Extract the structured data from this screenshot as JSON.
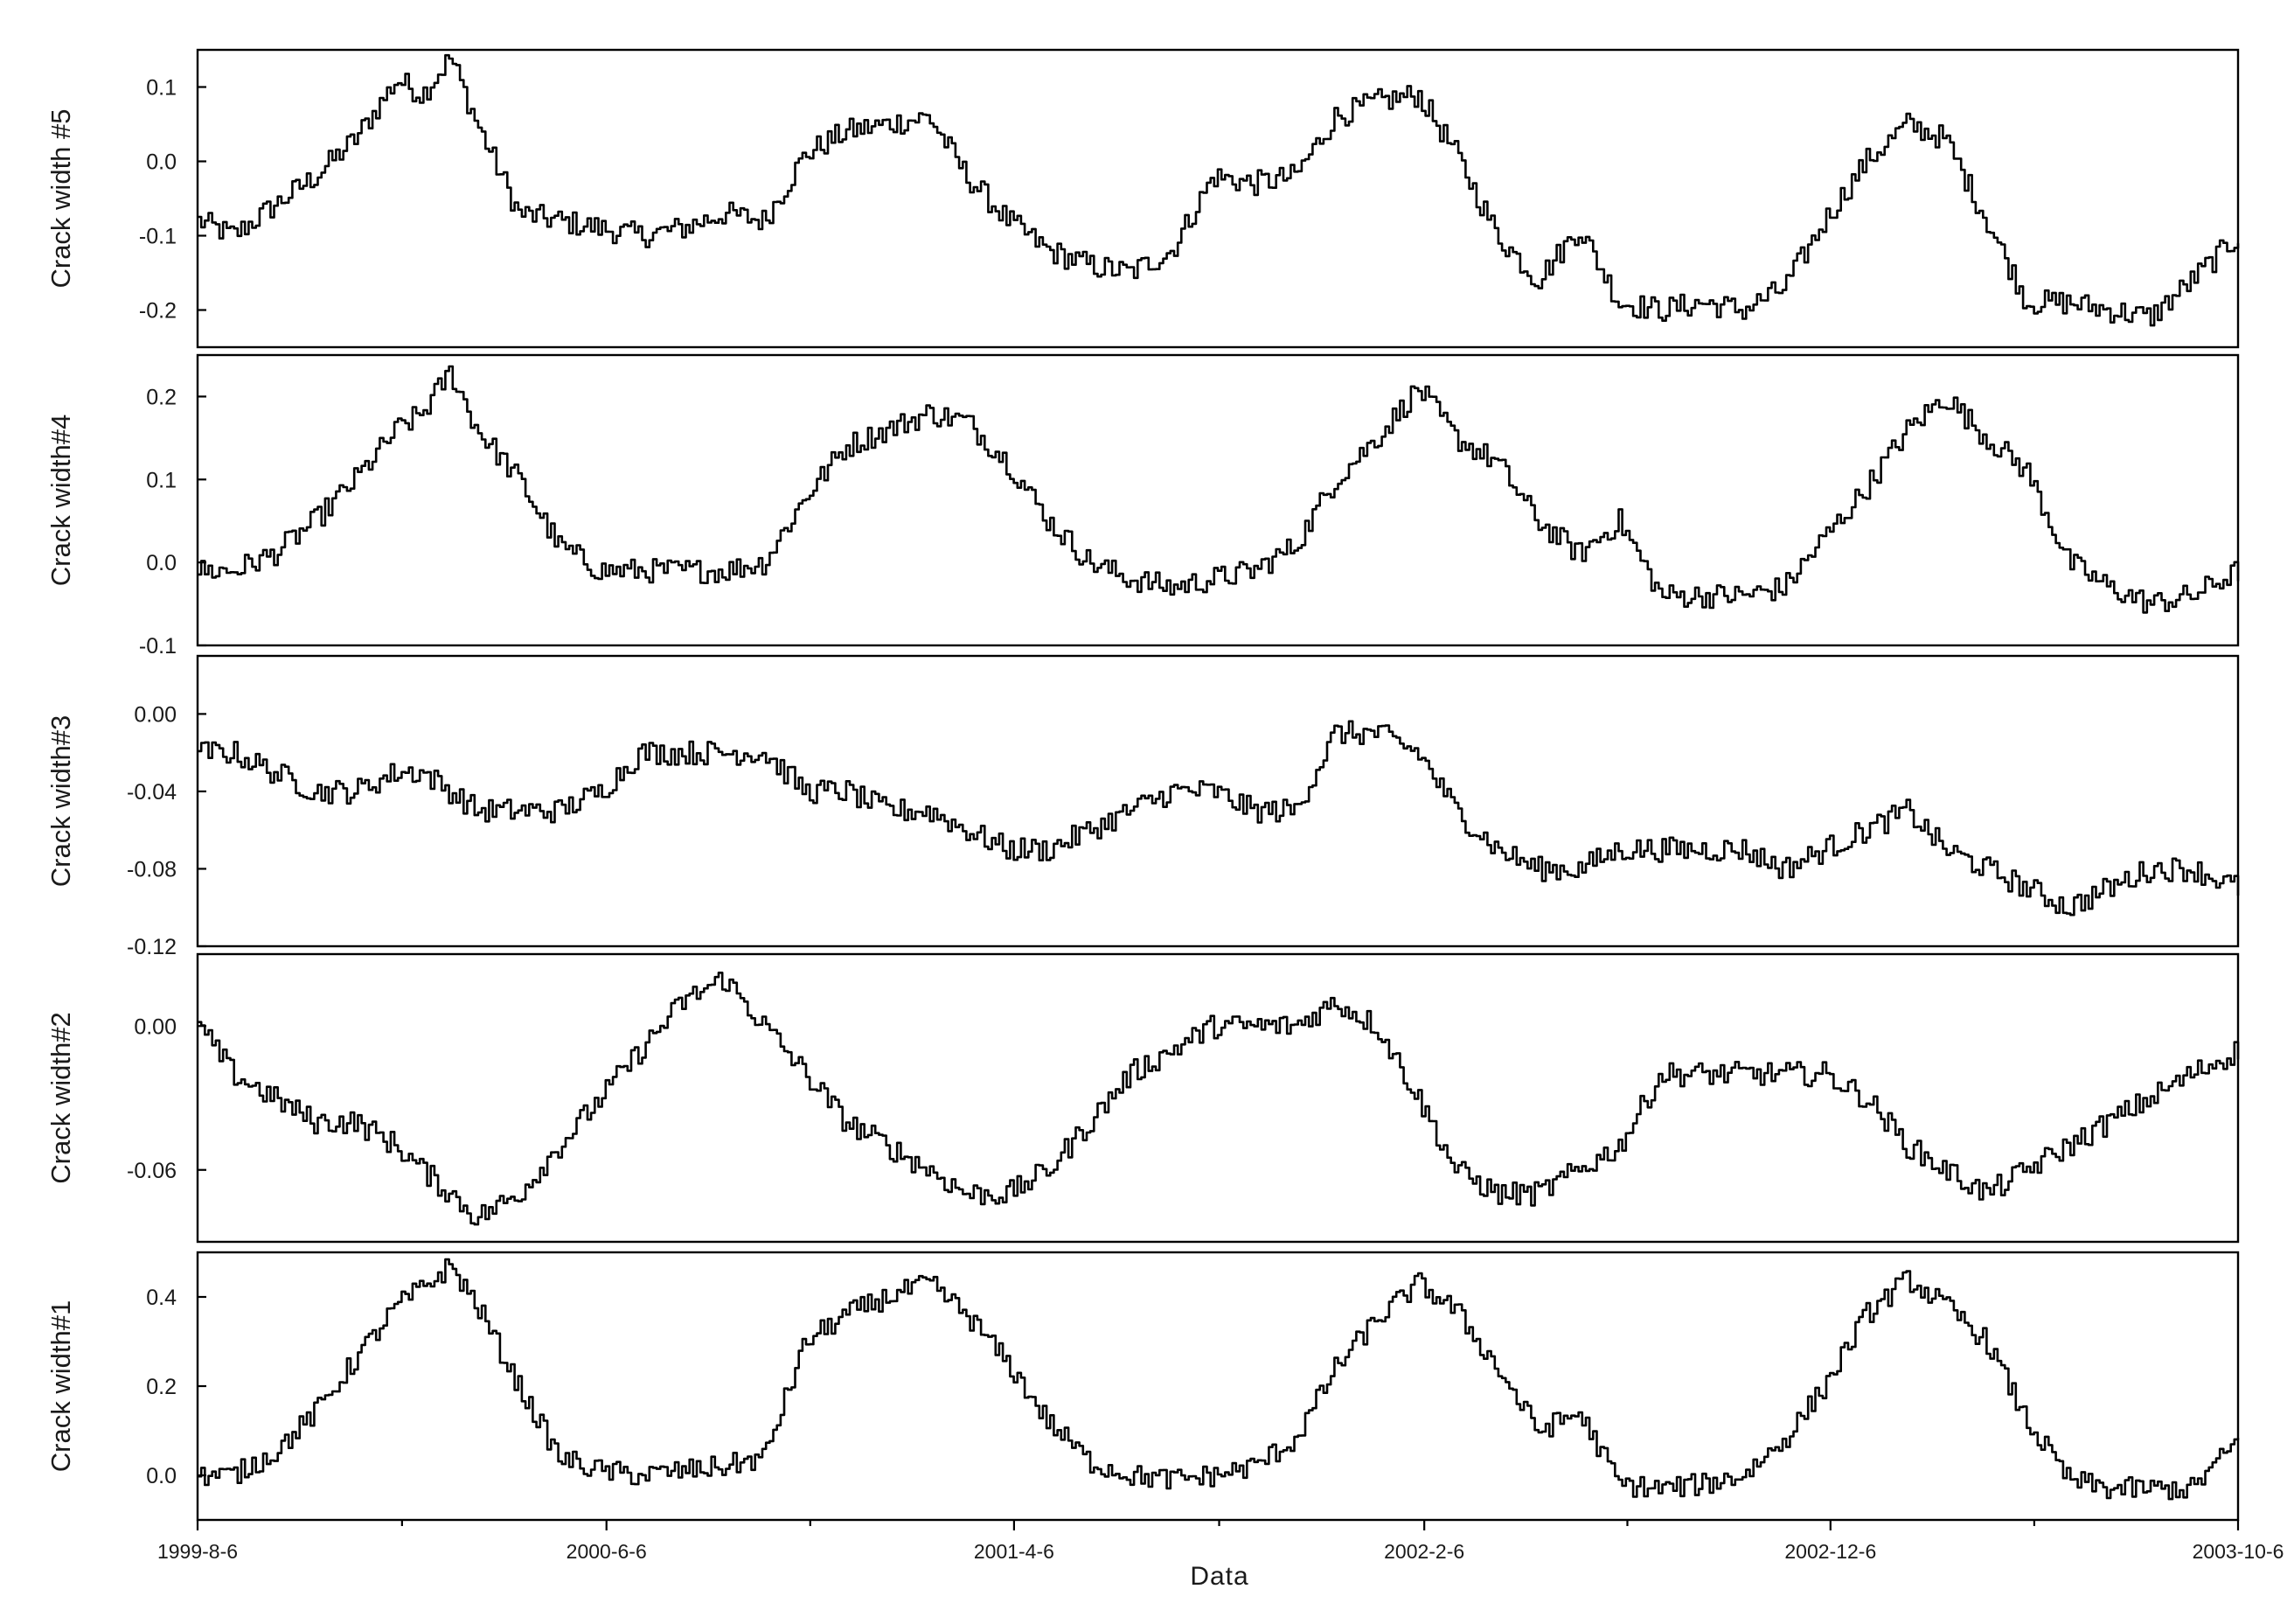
{
  "chart_data": {
    "type": "line",
    "xlabel": "Data",
    "x_tick_labels": [
      "1999-8-6",
      "2000-6-6",
      "2001-4-6",
      "2002-2-6",
      "2002-12-6",
      "2003-10-6"
    ],
    "x_range": [
      "1999-8-6",
      "2003-10-6"
    ],
    "grid": false,
    "line_color": "#000000",
    "panels": [
      {
        "ylabel": "Crack width #5",
        "ylim": [
          -0.25,
          0.15
        ],
        "y_ticks": [
          0.1,
          0.0,
          -0.1,
          -0.2
        ],
        "y_tick_labels": [
          "0.1",
          "0.0",
          "-0.1",
          "-0.2"
        ],
        "series": [
          {
            "x": [
              "1999-8-6",
              "1999-9-1",
              "1999-10-1",
              "1999-11-1",
              "1999-12-1",
              "2000-1-1",
              "2000-1-20",
              "2000-2-10",
              "2000-3-1",
              "2000-4-1",
              "2000-5-1",
              "2000-6-1",
              "2000-7-1",
              "2000-8-1",
              "2000-9-1",
              "2000-10-1",
              "2000-11-1",
              "2000-12-1",
              "2001-1-1",
              "2001-2-1",
              "2001-3-1",
              "2001-4-1",
              "2001-5-1",
              "2001-6-1",
              "2001-7-1",
              "2001-8-1",
              "2001-9-1",
              "2001-10-1",
              "2001-11-1",
              "2001-12-1",
              "2002-1-1",
              "2002-2-1",
              "2002-3-1",
              "2002-4-1",
              "2002-5-1",
              "2002-6-1",
              "2002-7-1",
              "2002-8-1",
              "2002-9-1",
              "2002-10-1",
              "2002-11-1",
              "2002-12-1",
              "2003-1-1",
              "2003-2-1",
              "2003-3-1",
              "2003-4-1",
              "2003-5-1",
              "2003-6-1",
              "2003-7-1",
              "2003-8-1",
              "2003-9-1",
              "2003-10-6"
            ],
            "y": [
              -0.08,
              -0.1,
              -0.06,
              -0.02,
              0.03,
              0.11,
              0.09,
              0.14,
              0.05,
              -0.07,
              -0.08,
              -0.09,
              -0.1,
              -0.09,
              -0.07,
              -0.08,
              0.01,
              0.04,
              0.05,
              0.06,
              -0.02,
              -0.08,
              -0.12,
              -0.14,
              -0.15,
              -0.12,
              -0.02,
              -0.03,
              -0.02,
              0.06,
              0.08,
              0.09,
              0.01,
              -0.1,
              -0.16,
              -0.09,
              -0.19,
              -0.2,
              -0.19,
              -0.2,
              -0.17,
              -0.08,
              0.0,
              0.05,
              0.03,
              -0.08,
              -0.19,
              -0.19,
              -0.2,
              -0.21,
              -0.16,
              -0.1
            ]
          }
        ]
      },
      {
        "ylabel": "Crack width#4",
        "ylim": [
          -0.1,
          0.25
        ],
        "y_ticks": [
          0.2,
          0.1,
          0.0,
          -0.1
        ],
        "y_tick_labels": [
          "0.2",
          "0.1",
          "0.0",
          "-0.1"
        ],
        "series": [
          {
            "x": [
              "1999-8-6",
              "1999-9-1",
              "1999-10-1",
              "1999-11-1",
              "1999-12-1",
              "2000-1-1",
              "2000-1-20",
              "2000-2-10",
              "2000-3-1",
              "2000-4-1",
              "2000-5-1",
              "2000-6-1",
              "2000-7-1",
              "2000-8-1",
              "2000-9-1",
              "2000-10-1",
              "2000-11-1",
              "2000-12-1",
              "2001-1-1",
              "2001-2-1",
              "2001-3-1",
              "2001-4-1",
              "2001-5-1",
              "2001-6-1",
              "2001-7-1",
              "2001-8-1",
              "2001-9-1",
              "2001-10-1",
              "2001-11-1",
              "2001-12-1",
              "2002-1-1",
              "2002-2-1",
              "2002-3-1",
              "2002-4-1",
              "2002-5-1",
              "2002-6-1",
              "2002-7-1",
              "2002-8-1",
              "2002-9-1",
              "2002-10-1",
              "2002-11-1",
              "2002-12-1",
              "2003-1-1",
              "2003-2-1",
              "2003-3-1",
              "2003-4-1",
              "2003-5-1",
              "2003-6-1",
              "2003-7-1",
              "2003-8-1",
              "2003-9-1",
              "2003-10-6"
            ],
            "y": [
              -0.01,
              -0.01,
              0.01,
              0.05,
              0.1,
              0.16,
              0.18,
              0.23,
              0.16,
              0.1,
              0.02,
              -0.01,
              -0.01,
              -0.01,
              -0.01,
              0.0,
              0.08,
              0.14,
              0.16,
              0.18,
              0.17,
              0.12,
              0.05,
              0.0,
              -0.02,
              -0.03,
              -0.02,
              -0.01,
              0.02,
              0.1,
              0.15,
              0.21,
              0.15,
              0.12,
              0.05,
              0.01,
              0.05,
              -0.04,
              -0.04,
              -0.04,
              -0.03,
              0.03,
              0.09,
              0.16,
              0.2,
              0.15,
              0.11,
              0.0,
              -0.03,
              -0.05,
              -0.04,
              -0.01
            ]
          }
        ]
      },
      {
        "ylabel": "Crack width#3",
        "ylim": [
          -0.12,
          0.03
        ],
        "y_ticks": [
          0.0,
          -0.04,
          -0.08,
          -0.12
        ],
        "y_tick_labels": [
          "0.00",
          "-0.04",
          "-0.08",
          "-0.12"
        ],
        "series": [
          {
            "x": [
              "1999-8-6",
              "1999-9-1",
              "1999-10-1",
              "1999-11-1",
              "1999-12-1",
              "2000-1-1",
              "2000-1-20",
              "2000-2-10",
              "2000-3-1",
              "2000-4-1",
              "2000-5-1",
              "2000-6-1",
              "2000-7-1",
              "2000-8-1",
              "2000-9-1",
              "2000-10-1",
              "2000-11-1",
              "2000-12-1",
              "2001-1-1",
              "2001-2-1",
              "2001-3-1",
              "2001-4-1",
              "2001-5-1",
              "2001-6-1",
              "2001-7-1",
              "2001-8-1",
              "2001-9-1",
              "2001-10-1",
              "2001-11-1",
              "2001-12-1",
              "2002-1-1",
              "2002-2-1",
              "2002-3-1",
              "2002-4-1",
              "2002-5-1",
              "2002-6-1",
              "2002-7-1",
              "2002-8-1",
              "2002-9-1",
              "2002-10-1",
              "2002-11-1",
              "2002-12-1",
              "2003-1-1",
              "2003-2-1",
              "2003-3-1",
              "2003-4-1",
              "2003-5-1",
              "2003-6-1",
              "2003-7-1",
              "2003-8-1",
              "2003-9-1",
              "2003-10-6"
            ],
            "y": [
              -0.02,
              -0.02,
              -0.03,
              -0.04,
              -0.04,
              -0.03,
              -0.03,
              -0.04,
              -0.05,
              -0.05,
              -0.05,
              -0.04,
              -0.02,
              -0.02,
              -0.02,
              -0.02,
              -0.04,
              -0.04,
              -0.05,
              -0.05,
              -0.06,
              -0.07,
              -0.07,
              -0.06,
              -0.05,
              -0.04,
              -0.04,
              -0.05,
              -0.05,
              -0.01,
              -0.01,
              -0.02,
              -0.05,
              -0.07,
              -0.08,
              -0.08,
              -0.07,
              -0.07,
              -0.07,
              -0.07,
              -0.08,
              -0.07,
              -0.06,
              -0.05,
              -0.07,
              -0.08,
              -0.09,
              -0.1,
              -0.09,
              -0.08,
              -0.08,
              -0.09
            ]
          }
        ]
      },
      {
        "ylabel": "Crack width#2",
        "ylim": [
          -0.09,
          0.03
        ],
        "y_ticks": [
          0.0,
          -0.06
        ],
        "y_tick_labels": [
          "0.00",
          "-0.06"
        ],
        "series": [
          {
            "x": [
              "1999-8-6",
              "1999-9-1",
              "1999-10-1",
              "1999-11-1",
              "1999-12-1",
              "2000-1-1",
              "2000-1-20",
              "2000-2-10",
              "2000-3-1",
              "2000-4-1",
              "2000-5-1",
              "2000-6-1",
              "2000-7-1",
              "2000-8-1",
              "2000-9-1",
              "2000-10-1",
              "2000-11-1",
              "2000-12-1",
              "2001-1-1",
              "2001-2-1",
              "2001-3-1",
              "2001-4-1",
              "2001-5-1",
              "2001-6-1",
              "2001-7-1",
              "2001-8-1",
              "2001-9-1",
              "2001-10-1",
              "2001-11-1",
              "2001-12-1",
              "2002-1-1",
              "2002-2-1",
              "2002-3-1",
              "2002-4-1",
              "2002-5-1",
              "2002-6-1",
              "2002-7-1",
              "2002-8-1",
              "2002-9-1",
              "2002-10-1",
              "2002-11-1",
              "2002-12-1",
              "2003-1-1",
              "2003-2-1",
              "2003-3-1",
              "2003-4-1",
              "2003-5-1",
              "2003-6-1",
              "2003-7-1",
              "2003-8-1",
              "2003-9-1",
              "2003-10-6"
            ],
            "y": [
              0.0,
              -0.02,
              -0.03,
              -0.04,
              -0.04,
              -0.05,
              -0.06,
              -0.07,
              -0.08,
              -0.07,
              -0.05,
              -0.03,
              -0.01,
              0.01,
              0.02,
              0.0,
              -0.02,
              -0.04,
              -0.05,
              -0.06,
              -0.07,
              -0.07,
              -0.06,
              -0.04,
              -0.02,
              -0.01,
              0.0,
              0.0,
              0.0,
              0.01,
              0.0,
              -0.03,
              -0.06,
              -0.07,
              -0.07,
              -0.06,
              -0.05,
              -0.02,
              -0.02,
              -0.02,
              -0.02,
              -0.02,
              -0.03,
              -0.05,
              -0.06,
              -0.07,
              -0.06,
              -0.05,
              -0.04,
              -0.03,
              -0.02,
              -0.01
            ]
          }
        ]
      },
      {
        "ylabel": "Crack width#1",
        "ylim": [
          -0.1,
          0.5
        ],
        "y_ticks": [
          0.4,
          0.2,
          0.0
        ],
        "y_tick_labels": [
          "0.4",
          "0.2",
          "0.0"
        ],
        "series": [
          {
            "x": [
              "1999-8-6",
              "1999-9-1",
              "1999-10-1",
              "1999-11-1",
              "1999-12-1",
              "2000-1-1",
              "2000-1-20",
              "2000-2-10",
              "2000-3-1",
              "2000-4-1",
              "2000-5-1",
              "2000-6-1",
              "2000-7-1",
              "2000-8-1",
              "2000-9-1",
              "2000-10-1",
              "2000-11-1",
              "2000-12-1",
              "2001-1-1",
              "2001-2-1",
              "2001-3-1",
              "2001-4-1",
              "2001-5-1",
              "2001-6-1",
              "2001-7-1",
              "2001-8-1",
              "2001-9-1",
              "2001-10-1",
              "2001-11-1",
              "2001-12-1",
              "2002-1-1",
              "2002-2-1",
              "2002-3-1",
              "2002-4-1",
              "2002-5-1",
              "2002-6-1",
              "2002-7-1",
              "2002-8-1",
              "2002-9-1",
              "2002-10-1",
              "2002-11-1",
              "2002-12-1",
              "2003-1-1",
              "2003-2-1",
              "2003-3-1",
              "2003-4-1",
              "2003-5-1",
              "2003-6-1",
              "2003-7-1",
              "2003-8-1",
              "2003-9-1",
              "2003-10-6"
            ],
            "y": [
              0.0,
              0.0,
              0.05,
              0.14,
              0.26,
              0.38,
              0.42,
              0.47,
              0.38,
              0.2,
              0.04,
              0.01,
              0.0,
              0.01,
              0.02,
              0.04,
              0.3,
              0.36,
              0.4,
              0.43,
              0.36,
              0.25,
              0.12,
              0.03,
              0.0,
              -0.01,
              0.0,
              0.02,
              0.08,
              0.24,
              0.35,
              0.43,
              0.37,
              0.24,
              0.1,
              0.14,
              -0.02,
              -0.03,
              -0.02,
              0.0,
              0.08,
              0.2,
              0.36,
              0.44,
              0.38,
              0.3,
              0.12,
              -0.01,
              -0.03,
              -0.03,
              -0.03,
              0.08
            ]
          }
        ]
      }
    ]
  }
}
